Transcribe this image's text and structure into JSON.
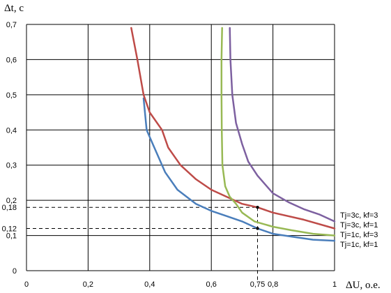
{
  "chart_data": {
    "type": "line",
    "title": "",
    "xlabel": "ΔU, о.е.",
    "ylabel": "Δt, с",
    "xlim": [
      0,
      1
    ],
    "ylim": [
      0,
      0.7
    ],
    "grid": true,
    "x_gridlines": [
      0,
      0.2,
      0.4,
      0.6,
      0.8,
      1
    ],
    "y_gridlines": [
      0,
      0.1,
      0.2,
      0.3,
      0.4,
      0.5,
      0.6,
      0.7
    ],
    "x_ticks": [
      {
        "value": 0,
        "label": "0"
      },
      {
        "value": 0.2,
        "label": "0,2"
      },
      {
        "value": 0.4,
        "label": "0,4"
      },
      {
        "value": 0.6,
        "label": "0,6"
      },
      {
        "value": 0.75,
        "label": "0,75"
      },
      {
        "value": 0.8,
        "label": "0,8"
      },
      {
        "value": 1,
        "label": "1"
      }
    ],
    "y_ticks": [
      {
        "value": 0,
        "label": "0"
      },
      {
        "value": 0.1,
        "label": "0,1"
      },
      {
        "value": 0.12,
        "label": "0,12"
      },
      {
        "value": 0.18,
        "label": "0,18"
      },
      {
        "value": 0.2,
        "label": "0,2"
      },
      {
        "value": 0.3,
        "label": "0,3"
      },
      {
        "value": 0.4,
        "label": "0,4"
      },
      {
        "value": 0.5,
        "label": "0,5"
      },
      {
        "value": 0.6,
        "label": "0,6"
      },
      {
        "value": 0.7,
        "label": "0,7"
      }
    ],
    "legend_position": "right",
    "legend_order": [
      3,
      1,
      2,
      0
    ],
    "series": [
      {
        "name": "Tj=1c, kf=1",
        "color": "#4a7ebb",
        "points": [
          [
            0.38,
            0.49
          ],
          [
            0.39,
            0.4
          ],
          [
            0.41,
            0.36
          ],
          [
            0.45,
            0.28
          ],
          [
            0.49,
            0.23
          ],
          [
            0.55,
            0.19
          ],
          [
            0.6,
            0.17
          ],
          [
            0.65,
            0.155
          ],
          [
            0.7,
            0.14
          ],
          [
            0.75,
            0.12
          ],
          [
            0.8,
            0.105
          ],
          [
            0.86,
            0.097
          ],
          [
            0.93,
            0.088
          ],
          [
            1.0,
            0.085
          ]
        ]
      },
      {
        "name": "Tj=3c, kf=1",
        "color": "#be4b48",
        "points": [
          [
            0.34,
            0.69
          ],
          [
            0.36,
            0.6
          ],
          [
            0.38,
            0.5
          ],
          [
            0.4,
            0.45
          ],
          [
            0.44,
            0.4
          ],
          [
            0.46,
            0.35
          ],
          [
            0.5,
            0.3
          ],
          [
            0.55,
            0.26
          ],
          [
            0.6,
            0.23
          ],
          [
            0.65,
            0.21
          ],
          [
            0.7,
            0.19
          ],
          [
            0.75,
            0.18
          ],
          [
            0.8,
            0.165
          ],
          [
            0.9,
            0.145
          ],
          [
            1.0,
            0.12
          ]
        ]
      },
      {
        "name": "Tj=1c, kf=3",
        "color": "#98b954",
        "points": [
          [
            0.635,
            0.69
          ],
          [
            0.633,
            0.6
          ],
          [
            0.633,
            0.5
          ],
          [
            0.634,
            0.4
          ],
          [
            0.636,
            0.3
          ],
          [
            0.645,
            0.24
          ],
          [
            0.66,
            0.21
          ],
          [
            0.68,
            0.19
          ],
          [
            0.7,
            0.165
          ],
          [
            0.74,
            0.14
          ],
          [
            0.8,
            0.125
          ],
          [
            0.86,
            0.115
          ],
          [
            0.93,
            0.105
          ],
          [
            1.0,
            0.1
          ]
        ]
      },
      {
        "name": "Tj=3c, kf=3",
        "color": "#7d60a0",
        "points": [
          [
            0.66,
            0.69
          ],
          [
            0.662,
            0.6
          ],
          [
            0.668,
            0.5
          ],
          [
            0.68,
            0.42
          ],
          [
            0.7,
            0.36
          ],
          [
            0.72,
            0.31
          ],
          [
            0.75,
            0.27
          ],
          [
            0.8,
            0.22
          ],
          [
            0.85,
            0.195
          ],
          [
            0.9,
            0.175
          ],
          [
            0.95,
            0.16
          ],
          [
            1.0,
            0.14
          ]
        ]
      }
    ],
    "reference_lines": {
      "x": 0.75,
      "y_values": [
        0.18,
        0.12
      ]
    }
  }
}
